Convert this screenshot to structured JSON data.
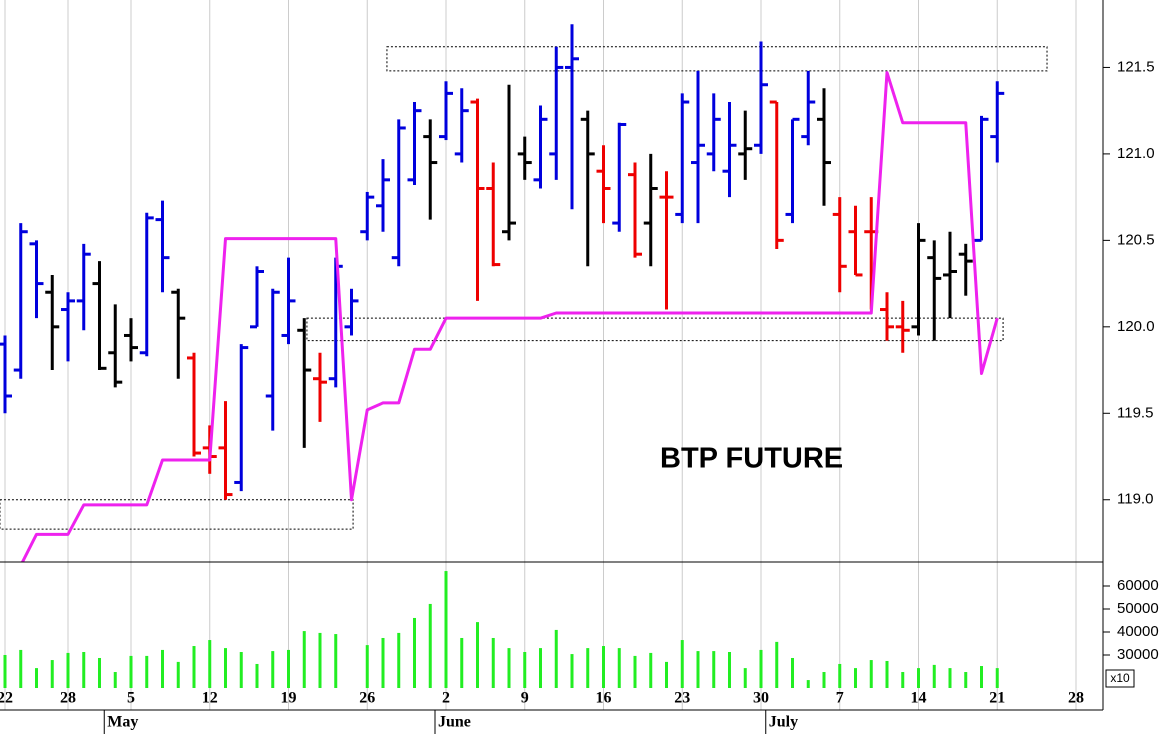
{
  "chart_data": {
    "type": "ohlc",
    "annotation": "BTP FUTURE",
    "categories": [
      "22",
      null,
      null,
      null,
      "28",
      null,
      null,
      null,
      "5",
      null,
      null,
      null,
      null,
      "12",
      null,
      null,
      null,
      null,
      "19",
      null,
      null,
      null,
      null,
      "26",
      null,
      null,
      null,
      null,
      "2",
      null,
      null,
      null,
      null,
      "9",
      null,
      null,
      null,
      null,
      "16",
      null,
      null,
      null,
      null,
      "23",
      null,
      null,
      null,
      null,
      "30",
      null,
      null,
      null,
      null,
      "7",
      null,
      null,
      null,
      null,
      "14",
      null,
      null,
      null,
      null,
      "21",
      null,
      null,
      null,
      null,
      "28",
      null
    ],
    "month_labels": [
      null,
      null,
      null,
      null,
      null,
      null,
      null,
      "May",
      null,
      null,
      null,
      null,
      null,
      null,
      null,
      null,
      null,
      null,
      null,
      null,
      null,
      null,
      null,
      null,
      null,
      null,
      null,
      null,
      "June",
      null,
      null,
      null,
      null,
      null,
      null,
      null,
      null,
      null,
      null,
      null,
      null,
      null,
      null,
      null,
      null,
      null,
      null,
      null,
      null,
      "July",
      null,
      null,
      null,
      null,
      null,
      null,
      null,
      null,
      null,
      null,
      null,
      null,
      null,
      null,
      null,
      null,
      null,
      null,
      null,
      null
    ],
    "open": [
      119.9,
      119.75,
      120.48,
      120.2,
      120.1,
      120.15,
      120.25,
      119.85,
      119.95,
      119.85,
      120.62,
      120.2,
      119.82,
      119.3,
      119.3,
      119.1,
      120.0,
      119.6,
      119.95,
      119.98,
      119.7,
      119.7,
      120.0,
      120.55,
      120.7,
      120.4,
      120.85,
      121.1,
      121.1,
      121.0,
      121.3,
      120.8,
      120.55,
      121.0,
      120.85,
      121.0,
      121.5,
      121.2,
      120.9,
      120.6,
      120.88,
      120.6,
      120.75,
      120.65,
      120.95,
      121.0,
      120.9,
      121.0,
      121.05,
      121.3,
      120.65,
      121.1,
      121.2,
      120.65,
      120.55,
      120.55,
      120.1,
      120.0,
      120.0,
      120.4,
      120.3,
      120.42,
      120.5,
      121.1,
      null,
      null,
      null,
      null,
      null,
      null
    ],
    "high": [
      119.95,
      120.6,
      120.5,
      120.3,
      120.2,
      120.48,
      120.38,
      120.13,
      120.05,
      120.66,
      120.73,
      120.22,
      119.85,
      119.43,
      119.57,
      119.9,
      120.35,
      120.22,
      120.4,
      120.05,
      119.85,
      120.4,
      120.22,
      120.78,
      120.97,
      121.2,
      121.3,
      121.2,
      121.42,
      121.38,
      121.32,
      120.95,
      121.4,
      121.1,
      121.28,
      121.62,
      121.75,
      121.25,
      121.05,
      121.18,
      120.95,
      121.0,
      120.9,
      121.35,
      121.48,
      121.35,
      121.3,
      121.25,
      121.65,
      121.3,
      121.2,
      121.48,
      121.38,
      120.75,
      120.7,
      120.75,
      120.2,
      120.15,
      120.6,
      120.5,
      120.55,
      120.48,
      121.22,
      121.42,
      null,
      null,
      null,
      null,
      null,
      null
    ],
    "low": [
      119.5,
      119.7,
      120.05,
      119.75,
      119.8,
      119.98,
      119.75,
      119.65,
      119.8,
      119.83,
      120.2,
      119.7,
      119.25,
      119.15,
      119.0,
      119.05,
      120.0,
      119.4,
      119.9,
      119.3,
      119.45,
      119.65,
      119.95,
      120.5,
      120.55,
      120.35,
      120.82,
      120.62,
      121.08,
      120.95,
      120.15,
      120.35,
      120.5,
      120.85,
      120.8,
      120.85,
      120.68,
      120.35,
      120.6,
      120.55,
      120.4,
      120.35,
      120.1,
      120.6,
      120.6,
      120.9,
      120.75,
      120.85,
      121.0,
      120.45,
      120.6,
      121.05,
      120.7,
      120.2,
      120.3,
      120.1,
      119.92,
      119.85,
      119.95,
      119.92,
      120.05,
      120.18,
      120.5,
      120.95,
      null,
      null,
      null,
      null,
      null,
      null
    ],
    "close": [
      119.6,
      120.55,
      120.25,
      120.0,
      120.15,
      120.42,
      119.76,
      119.68,
      119.88,
      120.63,
      120.4,
      120.05,
      119.27,
      119.25,
      119.03,
      119.88,
      120.32,
      120.2,
      120.15,
      119.75,
      119.68,
      120.35,
      120.15,
      120.75,
      120.85,
      121.15,
      121.25,
      120.95,
      121.35,
      121.25,
      120.8,
      120.36,
      120.6,
      120.95,
      121.2,
      121.5,
      121.55,
      121.0,
      120.8,
      121.17,
      120.42,
      120.8,
      120.75,
      121.3,
      121.05,
      121.2,
      121.05,
      121.03,
      121.4,
      120.5,
      121.2,
      121.3,
      120.95,
      120.35,
      120.3,
      120.55,
      120.0,
      119.98,
      120.5,
      120.28,
      120.32,
      120.38,
      121.2,
      121.35,
      null,
      null,
      null,
      null,
      null,
      null
    ],
    "bar_colors": [
      "#0000dd",
      "#0000dd",
      "#0000dd",
      "#000000",
      "#0000dd",
      "#0000dd",
      "#000000",
      "#000000",
      "#000000",
      "#0000dd",
      "#0000dd",
      "#000000",
      "#ee0000",
      "#ee0000",
      "#ee0000",
      "#0000dd",
      "#0000dd",
      "#0000dd",
      "#0000dd",
      "#000000",
      "#ee0000",
      "#0000dd",
      "#0000dd",
      "#0000dd",
      "#0000dd",
      "#0000dd",
      "#0000dd",
      "#000000",
      "#0000dd",
      "#0000dd",
      "#ee0000",
      "#ee0000",
      "#000000",
      "#000000",
      "#0000dd",
      "#0000dd",
      "#0000dd",
      "#000000",
      "#ee0000",
      "#0000dd",
      "#ee0000",
      "#000000",
      "#ee0000",
      "#0000dd",
      "#0000dd",
      "#0000dd",
      "#0000dd",
      "#000000",
      "#0000dd",
      "#ee0000",
      "#0000dd",
      "#0000dd",
      "#000000",
      "#ee0000",
      "#ee0000",
      "#ee0000",
      "#ee0000",
      "#ee0000",
      "#000000",
      "#000000",
      "#000000",
      "#000000",
      "#0000dd",
      "#0000dd",
      null,
      null,
      null,
      null,
      null,
      null
    ],
    "line": {
      "color": "#ee22ee",
      "values": [
        null,
        118.62,
        118.8,
        118.8,
        118.8,
        118.97,
        118.97,
        118.97,
        118.97,
        118.97,
        119.23,
        119.23,
        119.23,
        119.23,
        120.51,
        120.51,
        120.51,
        120.51,
        120.51,
        120.51,
        120.51,
        120.51,
        119.0,
        119.52,
        119.56,
        119.56,
        119.87,
        119.87,
        120.05,
        120.05,
        120.05,
        120.05,
        120.05,
        120.05,
        120.05,
        120.08,
        120.08,
        120.08,
        120.08,
        120.08,
        120.08,
        120.08,
        120.08,
        120.08,
        120.08,
        120.08,
        120.08,
        120.08,
        120.08,
        120.08,
        120.08,
        120.08,
        120.08,
        120.08,
        120.08,
        120.08,
        121.47,
        121.18,
        121.18,
        121.18,
        121.18,
        121.18,
        119.73,
        120.05,
        null,
        null,
        null,
        null,
        null,
        null
      ]
    },
    "zones": [
      {
        "y": [
          121.48,
          121.62
        ],
        "x": [
          24.25,
          66.16
        ]
      },
      {
        "y": [
          119.92,
          120.05
        ],
        "x": [
          19.17,
          63.37
        ]
      },
      {
        "y": [
          118.83,
          119.0
        ],
        "x": [
          -0.32,
          22.1
        ]
      }
    ],
    "ylim": [
      118.64,
      121.89
    ],
    "yticks": [
      {
        "value": 119,
        "label": "119.0"
      },
      119.5,
      {
        "value": 120,
        "label": "120.0"
      },
      120.5,
      {
        "value": 121,
        "label": "121.0"
      },
      121.5
    ],
    "grid": "x",
    "volume": {
      "type": "bar",
      "color": "#22ee22",
      "values": [
        30000,
        32200,
        24300,
        27800,
        30900,
        31300,
        28700,
        22600,
        29600,
        29600,
        32200,
        27000,
        33900,
        36500,
        33000,
        31300,
        26100,
        31700,
        32200,
        40400,
        39600,
        39100,
        null,
        34300,
        37400,
        39600,
        46100,
        52200,
        66500,
        37400,
        44300,
        37400,
        33000,
        31300,
        33000,
        40900,
        30400,
        33000,
        33900,
        33000,
        29600,
        30900,
        27000,
        36500,
        31700,
        31700,
        31300,
        24300,
        32200,
        35700,
        28700,
        19100,
        22600,
        26100,
        24300,
        27800,
        27400,
        22600,
        24300,
        25700,
        24300,
        22600,
        25200,
        24300,
        null,
        null,
        null,
        null,
        null,
        null
      ],
      "ylim": [
        15650,
        70000
      ],
      "yticks": [
        30000,
        40000,
        50000,
        60000
      ],
      "multiplier": "x10"
    }
  }
}
